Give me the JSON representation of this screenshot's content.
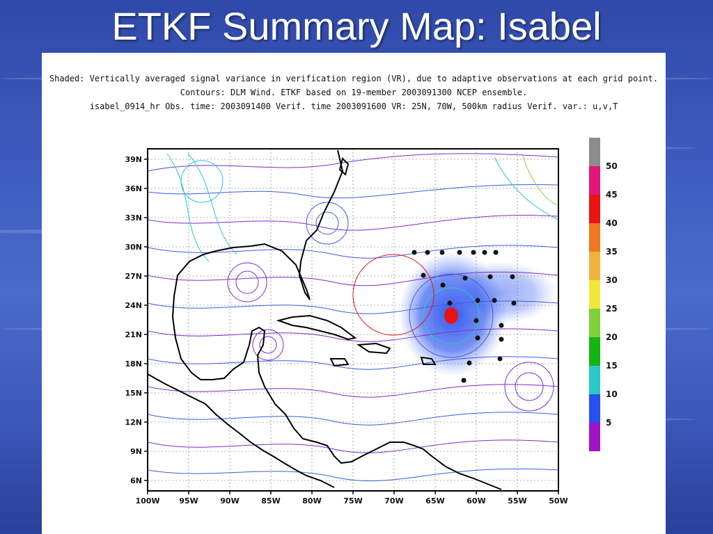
{
  "slide": {
    "title": "ETKF Summary Map: Isabel"
  },
  "header": {
    "line1": "Shaded: Vertically averaged signal variance in verification region (VR), due to adaptive observations at each grid point.",
    "line2": "Contours: DLM Wind. ETKF based on 19-member 2003091300 NCEP ensemble.",
    "line3": "isabel_0914_hr   Obs. time: 2003091400   Verif. time 2003091600   VR: 25N, 70W, 500km radius   Verif. var.: u,v,T"
  },
  "map": {
    "lat_labels": [
      "39N",
      "36N",
      "33N",
      "30N",
      "27N",
      "24N",
      "21N",
      "18N",
      "15N",
      "12N",
      "9N",
      "6N"
    ],
    "lon_labels": [
      "100W",
      "95W",
      "90W",
      "85W",
      "80W",
      "75W",
      "70W",
      "65W",
      "60W",
      "55W",
      "50W"
    ],
    "verification_region": {
      "center": "25N, 70W",
      "radius": "500km"
    }
  },
  "colorbar": {
    "labels": [
      "50",
      "45",
      "40",
      "35",
      "30",
      "25",
      "20",
      "15",
      "10",
      "5"
    ],
    "colors": [
      "#8c8c8c",
      "#e0177a",
      "#e81414",
      "#f0781e",
      "#f0b43c",
      "#f0e63c",
      "#7ed23c",
      "#14b414",
      "#2cc8c8",
      "#2850f0",
      "#a014c8"
    ]
  }
}
